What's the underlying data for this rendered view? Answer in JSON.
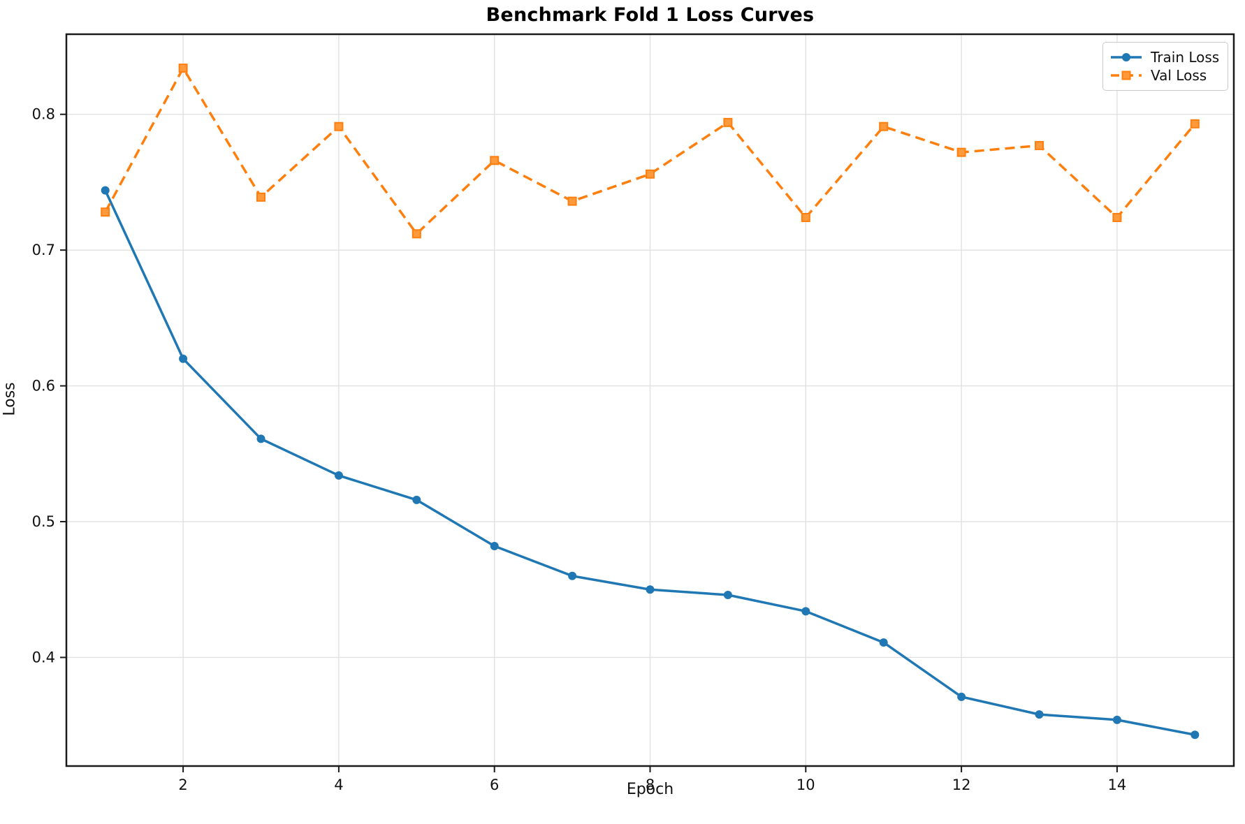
{
  "figure": {
    "title": "Benchmark Fold 1 Loss Curves",
    "xlabel": "Epoch",
    "ylabel": "Loss"
  },
  "legend": {
    "items": [
      {
        "label": "Train Loss",
        "color": "#1f77b4",
        "marker": "circle",
        "line_style": "solid"
      },
      {
        "label": "Val Loss",
        "color": "#ff7f0e",
        "marker": "square",
        "line_style": "dashed"
      }
    ],
    "position": "upper right"
  },
  "chart_data": {
    "type": "line",
    "title": "Benchmark Fold 1 Loss Curves",
    "xlabel": "Epoch",
    "ylabel": "Loss",
    "x": [
      1,
      2,
      3,
      4,
      5,
      6,
      7,
      8,
      9,
      10,
      11,
      12,
      13,
      14,
      15
    ],
    "series": [
      {
        "name": "Train Loss",
        "color": "#1f77b4",
        "line_style": "solid",
        "marker": "circle",
        "values": [
          0.744,
          0.62,
          0.561,
          0.534,
          0.516,
          0.482,
          0.46,
          0.45,
          0.446,
          0.434,
          0.411,
          0.371,
          0.358,
          0.354,
          0.343
        ]
      },
      {
        "name": "Val Loss",
        "color": "#ff7f0e",
        "line_style": "dashed",
        "marker": "square",
        "values": [
          0.728,
          0.834,
          0.739,
          0.791,
          0.712,
          0.766,
          0.736,
          0.756,
          0.794,
          0.724,
          0.791,
          0.772,
          0.777,
          0.724,
          0.793
        ]
      }
    ],
    "xlim": [
      0.5,
      15.5
    ],
    "ylim": [
      0.32,
      0.859
    ],
    "xticks": [
      2,
      4,
      6,
      8,
      10,
      12,
      14
    ],
    "yticks": [
      0.4,
      0.5,
      0.6,
      0.7,
      0.8
    ],
    "grid": true,
    "legend_position": "upper right"
  },
  "colors": {
    "background": "#ffffff",
    "grid": "#e1e1e1",
    "spine": "#1a1a1a",
    "tick_text": "#111111",
    "train": "#1f77b4",
    "val": "#ff7f0e"
  }
}
